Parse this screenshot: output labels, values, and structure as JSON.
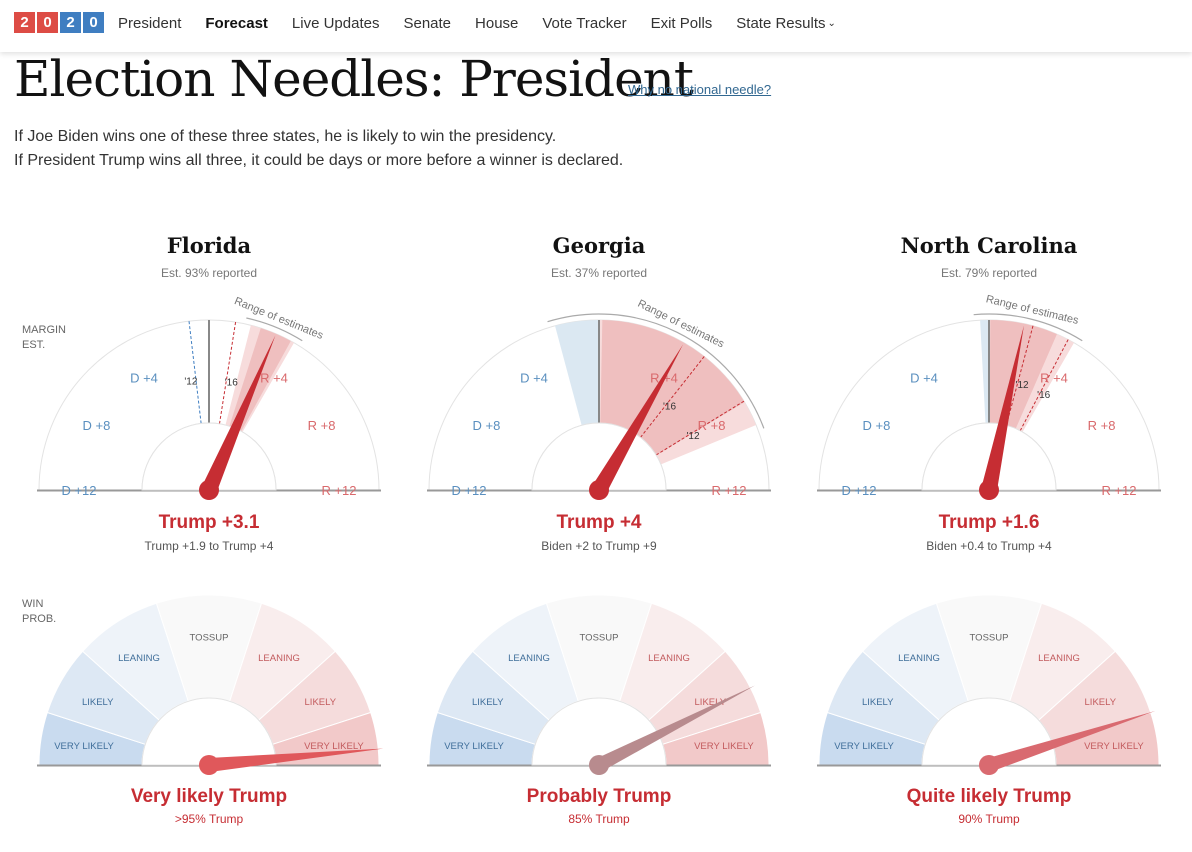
{
  "nav": {
    "logo_digits": [
      "2",
      "0",
      "2",
      "0"
    ],
    "items": [
      {
        "label": "President",
        "active": false
      },
      {
        "label": "Forecast",
        "active": true
      },
      {
        "label": "Live Updates",
        "active": false
      },
      {
        "label": "Senate",
        "active": false
      },
      {
        "label": "House",
        "active": false
      },
      {
        "label": "Vote Tracker",
        "active": false
      },
      {
        "label": "Exit Polls",
        "active": false
      },
      {
        "label": "State Results",
        "active": false,
        "dropdown": true
      }
    ]
  },
  "headline": "Election Needles: President",
  "why_link": "Why no national needle?",
  "intro": [
    "If Joe Biden wins one of these three states, he is likely to win the presidency.",
    "If President Trump wins all three, it could be days or more before a winner is declared."
  ],
  "side_labels": {
    "margin": [
      "MARGIN",
      "EST."
    ],
    "prob": [
      "WIN",
      "PROB."
    ]
  },
  "gauge_labels": {
    "margin_ticks": [
      {
        "label": "D +12",
        "value": -12
      },
      {
        "label": "D +8",
        "value": -8
      },
      {
        "label": "D +4",
        "value": -4
      },
      {
        "label": "R +4",
        "value": 4
      },
      {
        "label": "R +8",
        "value": 8
      },
      {
        "label": "R +12",
        "value": 12
      }
    ],
    "range_label": "Range of estimates",
    "prob_bands": [
      {
        "label": "VERY LIKELY",
        "side": "D"
      },
      {
        "label": "LIKELY",
        "side": "D"
      },
      {
        "label": "LEANING",
        "side": "D"
      },
      {
        "label": "TOSSUP",
        "side": "T"
      },
      {
        "label": "LEANING",
        "side": "R"
      },
      {
        "label": "LIKELY",
        "side": "R"
      },
      {
        "label": "VERY LIKELY",
        "side": "R"
      }
    ]
  },
  "colors": {
    "republican": "#c62d33",
    "democrat": "#3f7ec1",
    "tossup": "#f7f7f7"
  },
  "states": [
    {
      "name": "Florida",
      "reported": "Est. 93% reported",
      "margin_label": "Trump +3.1",
      "margin_range": "Trump +1.9 to Trump +4",
      "margin_estimate": 3.1,
      "range_low": 1.9,
      "range_high": 4,
      "prior_2012": -0.9,
      "prior_2016": 1.2,
      "prior_2012_label": "'12",
      "prior_2016_label": "'16",
      "prob_label": "Very likely Trump",
      "prob_pct_label": ">95% Trump",
      "prob_value": 0.97
    },
    {
      "name": "Georgia",
      "reported": "Est. 37% reported",
      "margin_label": "Trump +4",
      "margin_range": "Biden +2 to Trump +9",
      "margin_estimate": 4,
      "range_low": -2,
      "range_high": 9,
      "prior_2012": 7.8,
      "prior_2016": 5.1,
      "prior_2012_label": "'12",
      "prior_2016_label": "'16",
      "prob_label": "Probably Trump",
      "prob_pct_label": "85% Trump",
      "prob_value": 0.85
    },
    {
      "name": "North Carolina",
      "reported": "Est. 79% reported",
      "margin_label": "Trump +1.6",
      "margin_range": "Biden +0.4 to Trump +4",
      "margin_estimate": 1.6,
      "range_low": -0.4,
      "range_high": 4,
      "prior_2012": 2.0,
      "prior_2016": 3.7,
      "prior_2012_label": "'12",
      "prior_2016_label": "'16",
      "prob_label": "Quite likely Trump",
      "prob_pct_label": "90% Trump",
      "prob_value": 0.9
    }
  ]
}
